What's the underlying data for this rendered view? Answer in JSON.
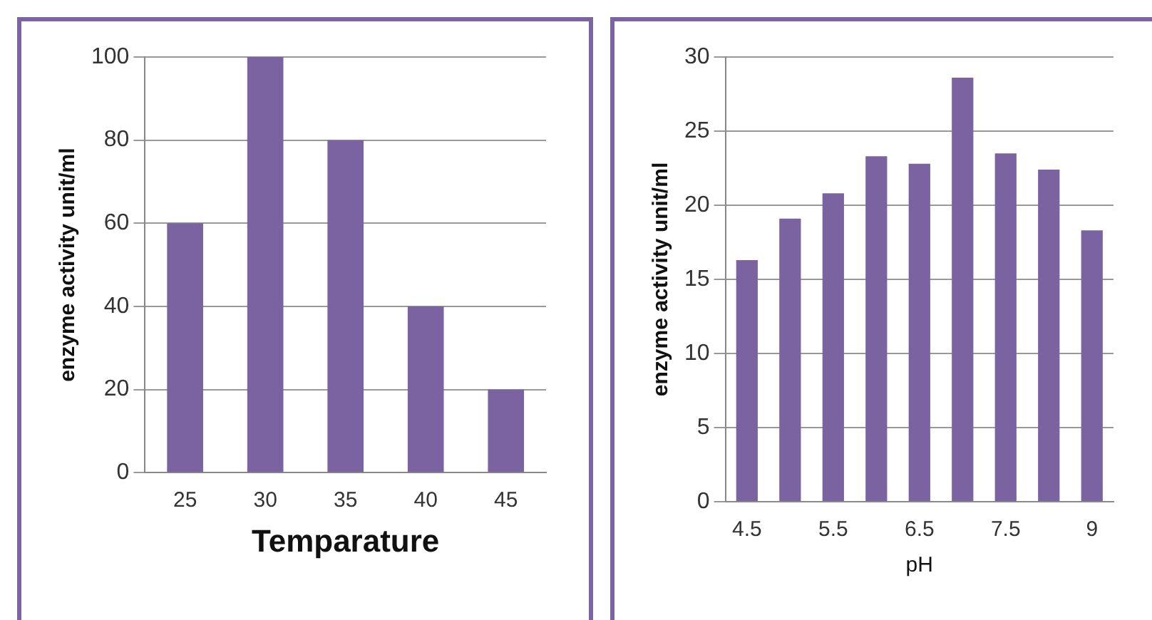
{
  "chart_data": [
    {
      "type": "bar",
      "xlabel": "Temparature",
      "ylabel": "enzyme activity unit/ml",
      "categories": [
        "25",
        "30",
        "35",
        "40",
        "45"
      ],
      "values": [
        60,
        100,
        80,
        40,
        20
      ],
      "color": "#7a63a0",
      "ylim": [
        0,
        100
      ],
      "yticks": [
        0,
        20,
        40,
        60,
        80,
        100
      ],
      "grid": "y",
      "legend": false
    },
    {
      "type": "bar",
      "xlabel": "pH",
      "ylabel": "enzyme activity unit/ml",
      "categories": [
        "4.5",
        null,
        "5.5",
        null,
        "6.5",
        null,
        "7.5",
        null,
        "9"
      ],
      "values": [
        16.3,
        19.1,
        20.8,
        23.3,
        22.8,
        28.6,
        23.5,
        22.4,
        18.3
      ],
      "color": "#7a63a0",
      "ylim": [
        0,
        30
      ],
      "yticks": [
        0,
        5,
        10,
        15,
        20,
        25,
        30
      ],
      "grid": "y",
      "legend": false
    }
  ]
}
